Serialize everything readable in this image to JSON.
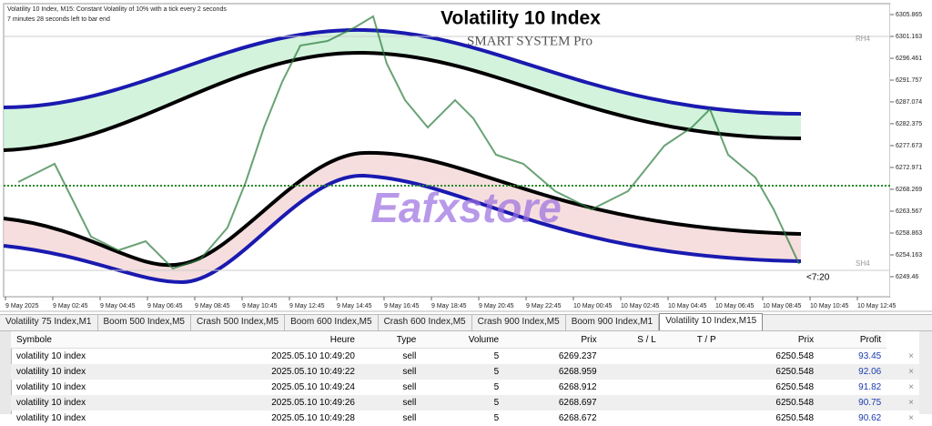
{
  "chart": {
    "info_line": "Volatility 10 Index, M15:  Constant Volatility of 10% with a tick every 2 seconds",
    "timer_line": "7 minutes 28 seconds left to bar end",
    "title": "Volatility 10 Index",
    "subtitle": "SMART SYSTEM Pro",
    "watermark": "Eafxstore",
    "rh_label": "RH4",
    "sh_label": "SH4",
    "countdown": "<7:20",
    "price_ticks": [
      6305.865,
      6301.163,
      6296.461,
      6291.757,
      6287.074,
      6282.375,
      6277.673,
      6272.971,
      6268.269,
      6263.567,
      6258.863,
      6254.163,
      6249.46
    ],
    "time_labels": [
      "9 May 2025",
      "9 May 02:45",
      "9 May 04:45",
      "9 May 06:45",
      "9 May 08:45",
      "9 May 10:45",
      "9 May 12:45",
      "9 May 14:45",
      "9 May 16:45",
      "9 May 18:45",
      "9 May 20:45",
      "9 May 22:45",
      "10 May 00:45",
      "10 May 02:45",
      "10 May 04:45",
      "10 May 06:45",
      "10 May 08:45",
      "10 May 10:45",
      "10 May 12:45"
    ]
  },
  "tabs": [
    "Volatility 75 Index,M1",
    "Boom 500 Index,M5",
    "Crash 500 Index,M5",
    "Boom 600 Index,M5",
    "Crash 600 Index,M5",
    "Crash 900 Index,M5",
    "Boom 900 Index,M1",
    "Volatility 10 Index,M15"
  ],
  "table": {
    "headers": [
      "Symbole",
      "Heure",
      "Type",
      "Volume",
      "Prix",
      "S / L",
      "T / P",
      "Prix",
      "Profit"
    ],
    "rows": [
      [
        "volatility 10 index",
        "2025.05.10 10:49:20",
        "sell",
        "5",
        "6269.237",
        "",
        "",
        "6250.548",
        "93.45"
      ],
      [
        "volatility 10 index",
        "2025.05.10 10:49:22",
        "sell",
        "5",
        "6268.959",
        "",
        "",
        "6250.548",
        "92.06"
      ],
      [
        "volatility 10 index",
        "2025.05.10 10:49:24",
        "sell",
        "5",
        "6268.912",
        "",
        "",
        "6250.548",
        "91.82"
      ],
      [
        "volatility 10 index",
        "2025.05.10 10:49:26",
        "sell",
        "5",
        "6268.697",
        "",
        "",
        "6250.548",
        "90.75"
      ],
      [
        "volatility 10 index",
        "2025.05.10 10:49:28",
        "sell",
        "5",
        "6268.672",
        "",
        "",
        "6250.548",
        "90.62"
      ]
    ]
  }
}
